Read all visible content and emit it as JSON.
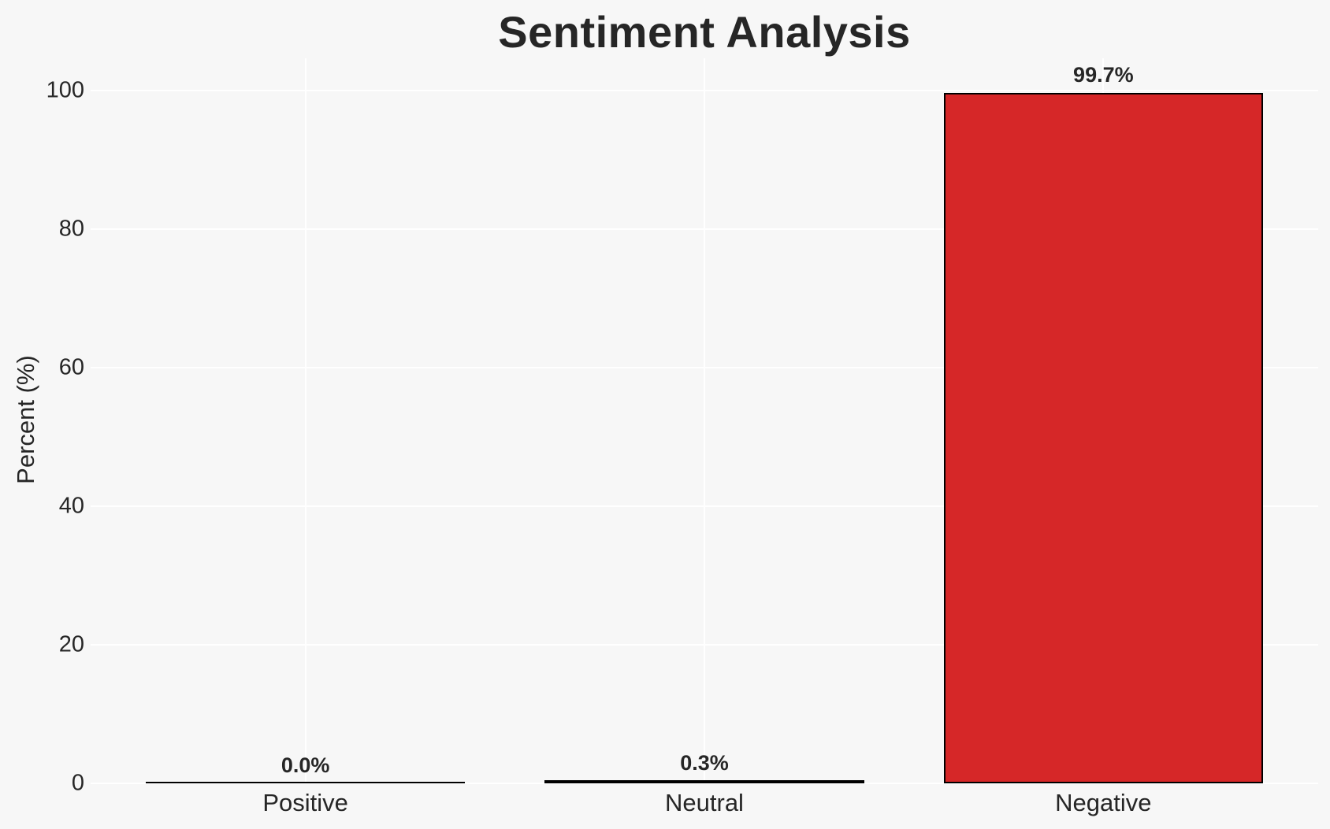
{
  "chart_data": {
    "type": "bar",
    "title": "Sentiment Analysis",
    "xlabel": "",
    "ylabel": "Percent (%)",
    "categories": [
      "Positive",
      "Neutral",
      "Negative"
    ],
    "values": [
      0.0,
      0.3,
      99.7
    ],
    "value_labels": [
      "0.0%",
      "0.3%",
      "99.7%"
    ],
    "yticks": [
      0,
      20,
      40,
      60,
      80,
      100
    ],
    "ylim": [
      0,
      104.7
    ],
    "grid": true,
    "legend": false,
    "colors": {
      "background": "#f7f7f7",
      "gridline": "#ffffff",
      "text": "#262626",
      "bar_fill": [
        "#000000",
        "#000000",
        "#d62728"
      ],
      "bar_edge": "#000000"
    }
  }
}
